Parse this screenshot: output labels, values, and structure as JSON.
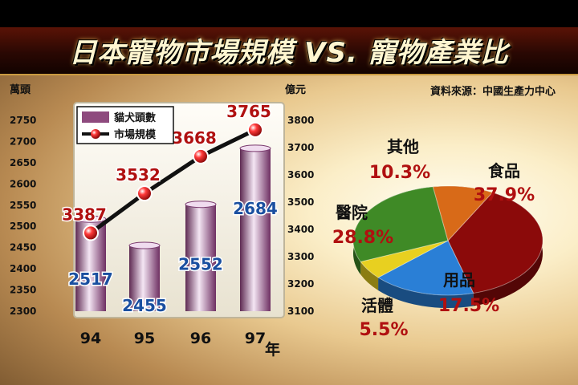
{
  "title": "日本寵物市場規模 VS. 寵物產業比",
  "source": "資料來源：中國生產力中心",
  "chart_data": [
    {
      "type": "bar",
      "categories": [
        "94",
        "95",
        "96",
        "97"
      ],
      "x_unit": "年",
      "series": [
        {
          "name": "貓犬頭數",
          "type": "bar",
          "axis": "left",
          "values": [
            2517,
            2455,
            2552,
            2684
          ],
          "color": "#8e4a7e"
        },
        {
          "name": "市場規模",
          "type": "line",
          "axis": "right",
          "values": [
            3387,
            3532,
            3668,
            3765
          ],
          "color": "#111111"
        }
      ],
      "y_left": {
        "unit": "萬頭",
        "range": [
          2300,
          2750
        ],
        "ticks": [
          2300,
          2350,
          2400,
          2450,
          2500,
          2550,
          2600,
          2650,
          2700,
          2750
        ]
      },
      "y_right": {
        "unit": "億元",
        "range": [
          3100,
          3800
        ],
        "ticks": [
          3100,
          3200,
          3300,
          3400,
          3500,
          3600,
          3700,
          3800
        ]
      },
      "legend": "top-left"
    },
    {
      "type": "pie",
      "slices": [
        {
          "label": "食品",
          "value": 37.9,
          "text": "37.9%",
          "color": "#8b0a0a"
        },
        {
          "label": "用品",
          "value": 17.5,
          "text": "17.5%",
          "color": "#2a7fd6"
        },
        {
          "label": "活體",
          "value": 5.5,
          "text": "5.5%",
          "color": "#e8d020"
        },
        {
          "label": "醫院",
          "value": 28.8,
          "text": "28.8%",
          "color": "#3f8a26"
        },
        {
          "label": "其他",
          "value": 10.3,
          "text": "10.3%",
          "color": "#d86a18"
        }
      ]
    }
  ]
}
